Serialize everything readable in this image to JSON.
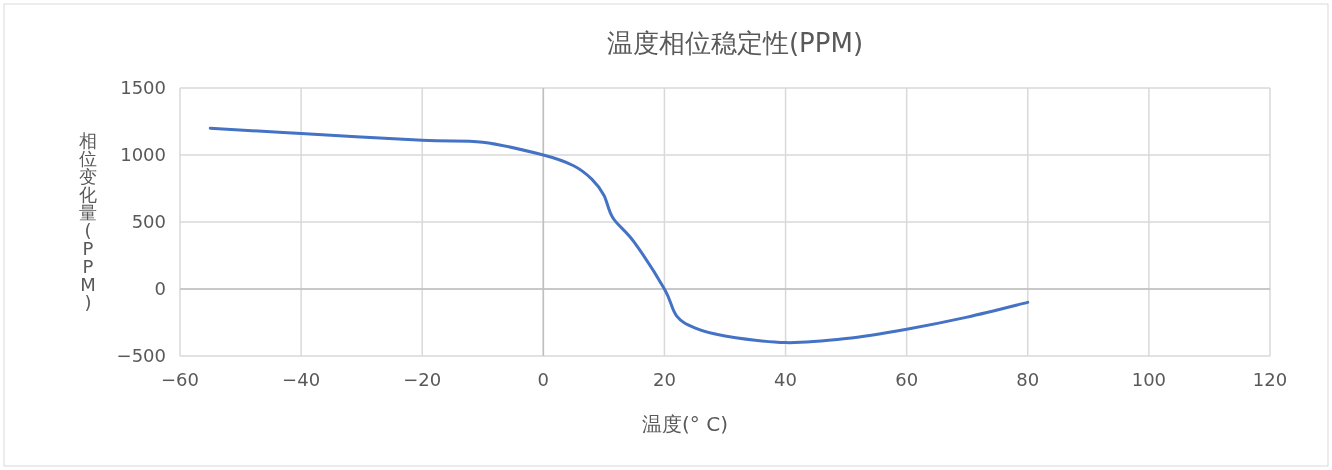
{
  "chart_data": {
    "type": "line",
    "title": "温度相位稳定性(PPM)",
    "xlabel": "温度(° C)",
    "ylabel": "相位变化量(PPM)",
    "x": [
      -55,
      -40,
      -20,
      -10,
      0,
      5,
      8,
      10,
      11.5,
      15,
      20,
      22,
      25,
      30,
      40,
      50,
      60,
      70,
      80
    ],
    "series": [
      {
        "color": "#4472c4",
        "values": [
          1200,
          1160,
          1110,
          1095,
          1000,
          920,
          820,
          700,
          530,
          350,
          0,
          -200,
          -290,
          -350,
          -400,
          -370,
          -300,
          -210,
          -100
        ]
      }
    ],
    "xlim": [
      -60,
      120
    ],
    "ylim": [
      -500,
      1500
    ],
    "xticks": [
      -60,
      -40,
      -20,
      0,
      20,
      40,
      60,
      80,
      100,
      120
    ],
    "yticks": [
      -500,
      0,
      500,
      1000,
      1500
    ],
    "grid": true
  }
}
